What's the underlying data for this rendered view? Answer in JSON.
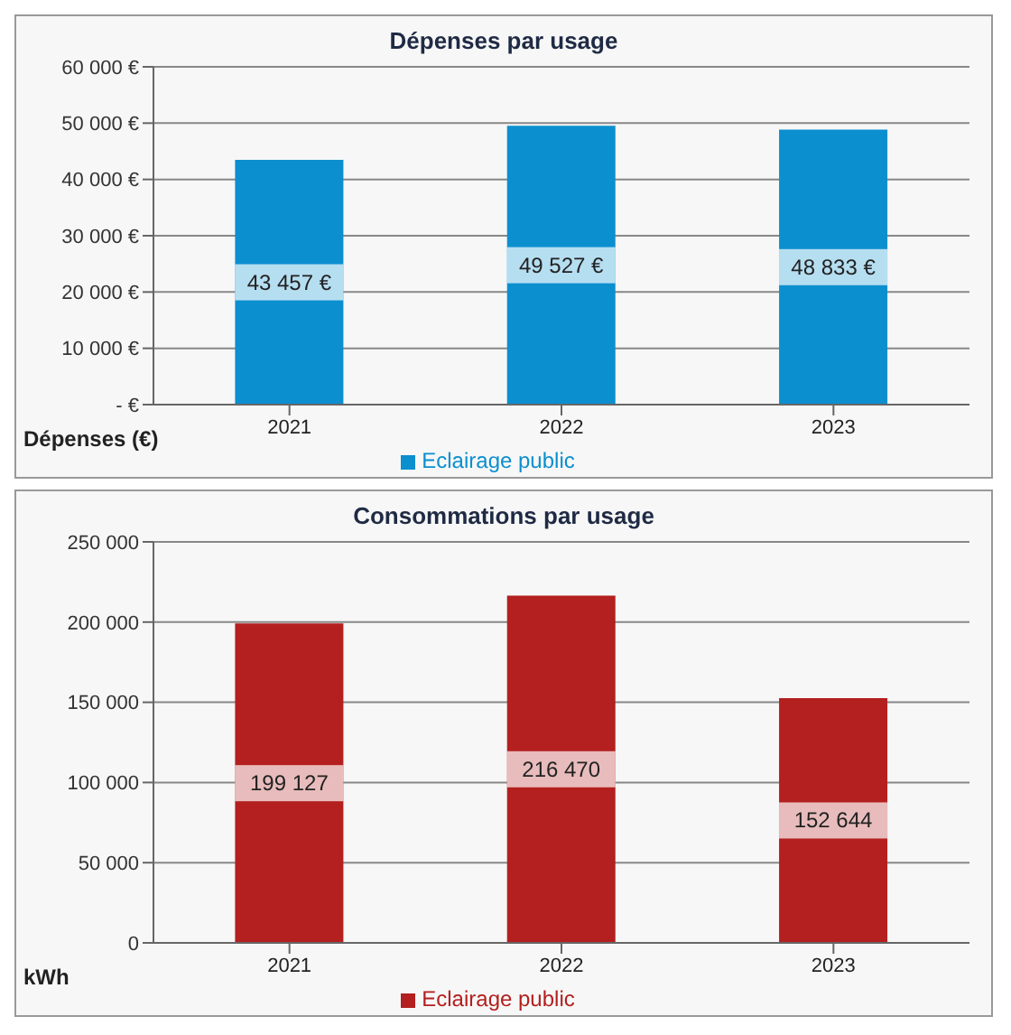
{
  "chart_data": [
    {
      "type": "bar",
      "title": "Dépenses par usage",
      "ylabel": "Dépenses (€)",
      "categories": [
        "2021",
        "2022",
        "2023"
      ],
      "series": [
        {
          "name": "Eclairage public",
          "color": "#0b8fcf",
          "values": [
            43457,
            49527,
            48833
          ],
          "value_labels": [
            "43 457 €",
            "49 527 €",
            "48 833 €"
          ]
        }
      ],
      "ylim": [
        0,
        60000
      ],
      "yticks": [
        {
          "value": 0,
          "label": "- €"
        },
        {
          "value": 10000,
          "label": "10 000 €"
        },
        {
          "value": 20000,
          "label": "20 000 €"
        },
        {
          "value": 30000,
          "label": "30 000 €"
        },
        {
          "value": 40000,
          "label": "40 000 €"
        },
        {
          "value": 50000,
          "label": "50 000 €"
        },
        {
          "value": 60000,
          "label": "60 000 €"
        }
      ],
      "grid": "y",
      "legend": "bottom"
    },
    {
      "type": "bar",
      "title": "Consommations par usage",
      "ylabel": "kWh",
      "categories": [
        "2021",
        "2022",
        "2023"
      ],
      "series": [
        {
          "name": "Eclairage public",
          "color": "#b3201f",
          "values": [
            199127,
            216470,
            152644
          ],
          "value_labels": [
            "199 127",
            "216 470",
            "152 644"
          ]
        }
      ],
      "ylim": [
        0,
        250000
      ],
      "yticks": [
        0,
        {
          "value": 50000,
          "label": "50 000"
        },
        {
          "value": 100000,
          "label": "100 000"
        },
        {
          "value": 150000,
          "label": "150 000"
        },
        {
          "value": 200000,
          "label": "200 000"
        },
        {
          "value": 250000,
          "label": "250 000"
        }
      ],
      "grid": "y",
      "legend": "bottom"
    }
  ]
}
